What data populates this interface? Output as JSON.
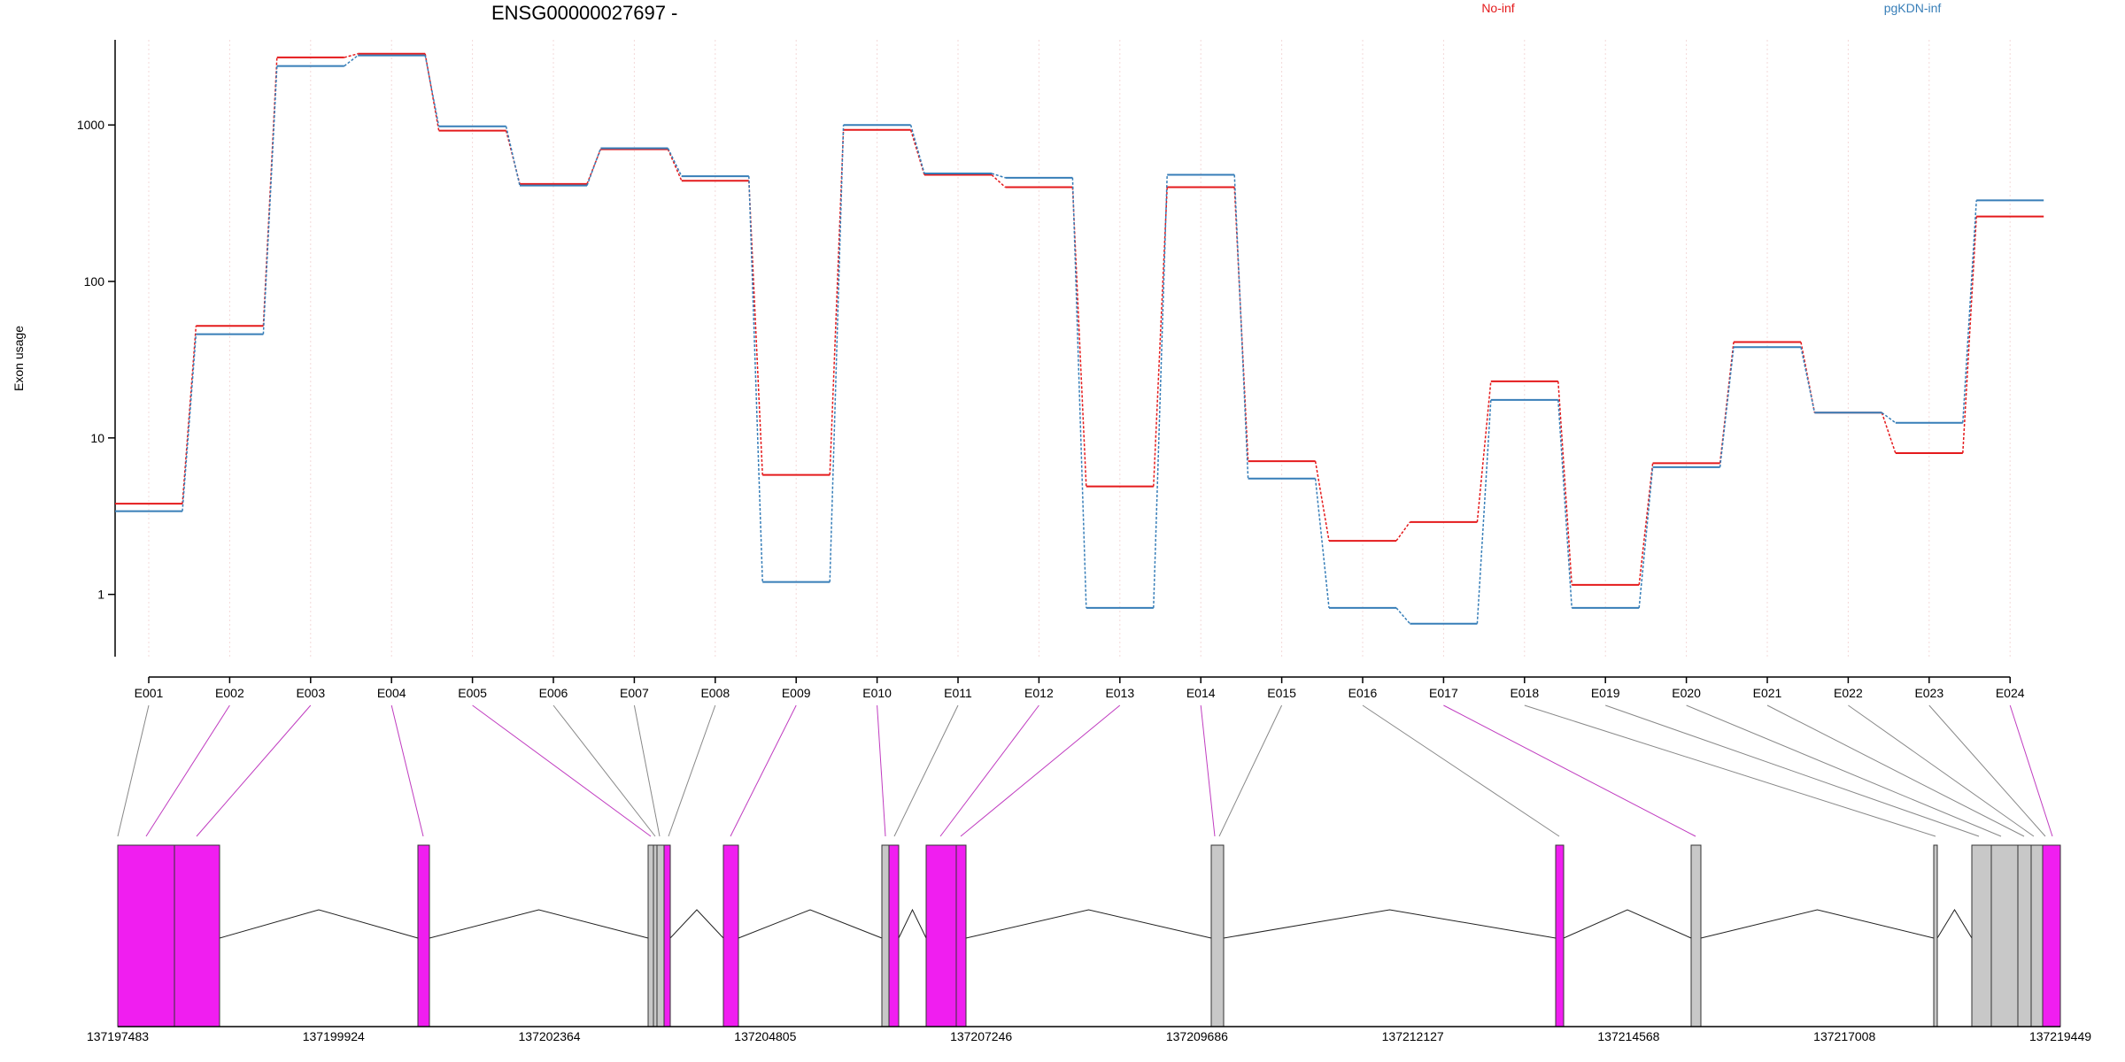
{
  "title": "ENSG00000027697 -",
  "colors": {
    "no_inf": "#e41a1c",
    "pgkdn_inf": "#377eb8",
    "highlight_exon": "#f01ef0",
    "plain_exon": "#c8c8c8",
    "link_gray": "#888888",
    "link_magenta": "#c03cc0"
  },
  "chart_data": {
    "type": "line",
    "style": "step",
    "ylabel": "Exon usage",
    "yscale": "log",
    "ylim": [
      0.4,
      3500
    ],
    "yticks": [
      1,
      10,
      100,
      1000
    ],
    "ytick_labels": [
      "1",
      "10",
      "100",
      "1000"
    ],
    "grid": "vertical dotted, one per exon",
    "legend_placement": "top",
    "categories": [
      "E001",
      "E002",
      "E003",
      "E004",
      "E005",
      "E006",
      "E007",
      "E008",
      "E009",
      "E010",
      "E011",
      "E012",
      "E013",
      "E014",
      "E015",
      "E016",
      "E017",
      "E018",
      "E019",
      "E020",
      "E021",
      "E022",
      "E023",
      "E024"
    ],
    "series": [
      {
        "name": "No-inf",
        "color": "#e41a1c",
        "values": [
          3.8,
          52,
          2700,
          2850,
          920,
          420,
          700,
          440,
          5.8,
          930,
          480,
          400,
          4.9,
          400,
          7.1,
          2.2,
          2.9,
          23,
          1.15,
          6.9,
          41,
          14.5,
          8,
          260
        ]
      },
      {
        "name": "pgKDN-inf",
        "color": "#377eb8",
        "values": [
          3.4,
          46,
          2380,
          2780,
          980,
          410,
          710,
          470,
          1.2,
          1000,
          490,
          460,
          0.82,
          480,
          5.5,
          0.82,
          0.65,
          17.5,
          0.82,
          6.5,
          38,
          14.5,
          12.5,
          330
        ]
      }
    ],
    "gene_model": {
      "coordinate_ticks": [
        "137197483",
        "137199924",
        "137202364",
        "137204805",
        "137207246",
        "137209686",
        "137212127",
        "137214568",
        "137217008",
        "137219449"
      ],
      "exon_highlighted": [
        false,
        true,
        true,
        true,
        true,
        false,
        false,
        false,
        true,
        true,
        false,
        true,
        true,
        true,
        false,
        false,
        true,
        false,
        false,
        false,
        false,
        false,
        false,
        true
      ]
    }
  }
}
